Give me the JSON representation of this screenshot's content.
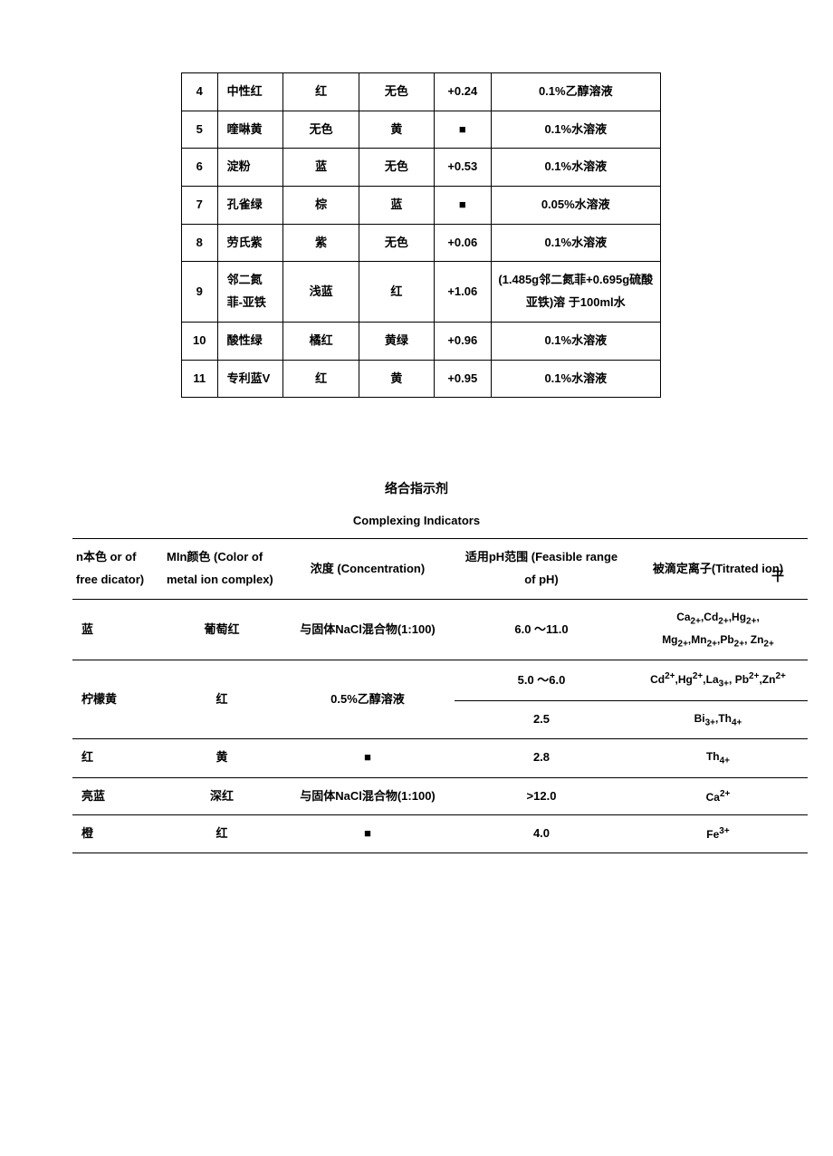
{
  "table1": {
    "rows": [
      {
        "n": "4",
        "name": "中性红",
        "col3": "红",
        "col4": "无色",
        "val": "+0.24",
        "sol": "0.1%乙醇溶液"
      },
      {
        "n": "5",
        "name": "喹啉黄",
        "col3": "无色",
        "col4": "黄",
        "val": "■",
        "sol": "0.1%水溶液"
      },
      {
        "n": "6",
        "name": "淀粉",
        "col3": "蓝",
        "col4": "无色",
        "val": "+0.53",
        "sol": "0.1%水溶液"
      },
      {
        "n": "7",
        "name": "孔雀绿",
        "col3": "棕",
        "col4": "蓝",
        "val": "■",
        "sol": "0.05%水溶液"
      },
      {
        "n": "8",
        "name": "劳氏紫",
        "col3": "紫",
        "col4": "无色",
        "val": "+0.06",
        "sol": "0.1%水溶液"
      },
      {
        "n": "9",
        "name": "邻二氮菲-亚铁",
        "col3": "浅蓝",
        "col4": "红",
        "val": "+1.06",
        "sol": "(1.485g邻二氮菲+0.695g硫酸亚铁)溶 于100ml水"
      },
      {
        "n": "10",
        "name": "酸性绿",
        "col3": "橘红",
        "col4": "黄绿",
        "val": "+0.96",
        "sol": "0.1%水溶液"
      },
      {
        "n": "11",
        "name": "专利蓝V",
        "col3": "红",
        "col4": "黄",
        "val": "+0.95",
        "sol": "0.1%水溶液"
      }
    ]
  },
  "section": {
    "title_cn": "络合指示剂",
    "title_en": "Complexing Indicators",
    "stray": "干"
  },
  "table2": {
    "header": {
      "h1": "n本色 or of free dicator)",
      "h2": "MIn颜色  (Color of metal ion complex)",
      "h3": "浓度  (Concentration)",
      "h4": "适用pH范围 (Feasible range of pH)",
      "h5": "被滴定离子(Titrated ion)"
    },
    "row1": {
      "c1": "蓝",
      "c2": "葡萄红",
      "c3": "与固体NaCl混合物(1:100)",
      "c4": "6.0 〜11.0",
      "ions_html": "Ca<sub>2+</sub>,Cd<sub>2+</sub>,Hg<sub>2+</sub>, Mg<sub>2+</sub>,Mn<sub>2+</sub>,Pb<sub>2+</sub>, Zn<sub>2+</sub>"
    },
    "row2": {
      "c1": "柠檬黄",
      "c2": "红",
      "c3": "0.5%乙醇溶液",
      "sub1_c4": "5.0 〜6.0",
      "sub1_ions_html": "Cd<sup>2+</sup>,Hg<sup>2+</sup>,La<sub>3+</sub>, Pb<sup>2+</sup>,Zn<sup>2+</sup>",
      "sub2_c4": "2.5",
      "sub2_ions_html": "Bi<sub>3+</sub>,Th<sub>4+</sub>"
    },
    "row3": {
      "c1": "红",
      "c2": "黄",
      "c3": "■",
      "c4": "2.8",
      "ions_html": "Th<sub>4+</sub>"
    },
    "row4": {
      "c1": "亮蓝",
      "c2": "深红",
      "c3": "与固体NaCl混合物(1:100)",
      "c4": ">12.0",
      "ions_html": "Ca<sup>2+</sup>"
    },
    "row5": {
      "c1": "橙",
      "c2": "红",
      "c3": "■",
      "c4": "4.0",
      "ions_html": "Fe<sup>3+</sup>"
    }
  }
}
